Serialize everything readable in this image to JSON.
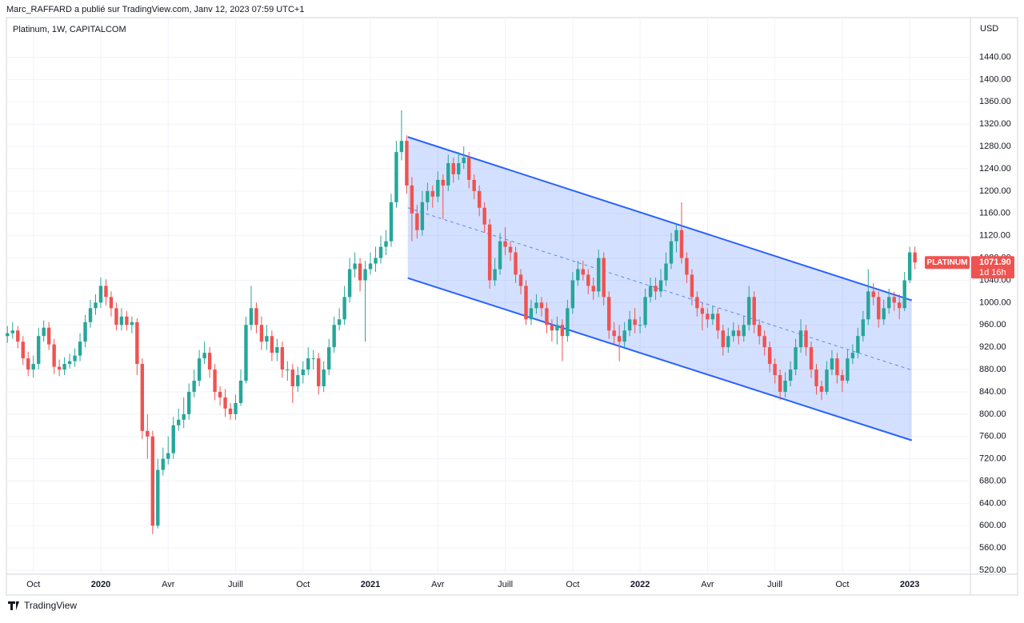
{
  "header": {
    "byline": "Marc_RAFFARD a publié sur TradingView.com, Janv 12, 2023 07:59 UTC+1"
  },
  "chart_data": {
    "type": "candlestick",
    "symbol": "Platinum, 1W, CAPITALCOM",
    "currency": "USD",
    "x": [
      -5,
      -4,
      -3,
      -2,
      -1,
      0,
      1,
      2,
      3,
      4,
      5,
      6,
      7,
      8,
      9,
      10,
      11,
      12,
      13,
      14,
      15,
      16,
      17,
      18,
      19,
      20,
      21,
      22,
      23,
      24,
      25,
      26,
      27,
      28,
      29,
      30,
      31,
      32,
      33,
      34,
      35,
      36,
      37,
      38,
      39,
      40,
      41,
      42,
      43,
      44,
      45,
      46,
      47,
      48,
      49,
      50,
      51,
      52,
      53,
      54,
      55,
      56,
      57,
      58,
      59,
      60,
      61,
      62,
      63,
      64,
      65,
      66,
      67,
      68,
      69,
      70,
      71,
      72,
      73,
      74,
      75,
      76,
      77,
      78,
      79,
      80,
      81,
      82,
      83,
      84,
      85,
      86,
      87,
      88,
      89,
      90,
      91,
      92,
      93,
      94,
      95,
      96,
      97,
      98,
      99,
      100,
      101,
      102,
      103,
      104,
      105,
      106,
      107,
      108,
      109,
      110,
      111,
      112,
      113,
      114,
      115,
      116,
      117,
      118,
      119,
      120,
      121,
      122,
      123,
      124,
      125,
      126,
      127,
      128,
      129,
      130,
      131,
      132,
      133,
      134,
      135,
      136,
      137,
      138,
      139,
      140,
      141,
      142,
      143,
      144,
      145,
      146,
      147,
      148,
      149,
      150,
      151,
      152,
      153,
      154,
      155,
      156,
      157,
      158,
      159,
      160,
      161,
      162,
      163,
      164,
      165,
      166,
      167,
      168,
      169,
      170
    ],
    "open": [
      940,
      945,
      950,
      930,
      900,
      880,
      890,
      940,
      955,
      925,
      885,
      880,
      890,
      895,
      905,
      930,
      965,
      990,
      1000,
      1030,
      1010,
      990,
      960,
      975,
      960,
      965,
      890,
      770,
      760,
      600,
      700,
      720,
      730,
      780,
      790,
      800,
      840,
      860,
      900,
      910,
      880,
      840,
      830,
      810,
      800,
      820,
      860,
      960,
      990,
      960,
      930,
      940,
      910,
      920,
      880,
      880,
      850,
      870,
      880,
      900,
      900,
      850,
      880,
      920,
      960,
      970,
      1010,
      1060,
      1070,
      1040,
      1060,
      1070,
      1080,
      1100,
      1110,
      1180,
      1270,
      1290,
      1210,
      1160,
      1130,
      1180,
      1200,
      1190,
      1220,
      1210,
      1250,
      1230,
      1250,
      1260,
      1220,
      1200,
      1170,
      1140,
      1040,
      1060,
      1110,
      1100,
      1090,
      1050,
      1030,
      970,
      990,
      1000,
      990,
      960,
      950,
      960,
      940,
      990,
      1040,
      1060,
      1050,
      1030,
      1020,
      1080,
      1010,
      950,
      940,
      930,
      950,
      970,
      960,
      960,
      1010,
      1030,
      1020,
      1040,
      1070,
      1110,
      1130,
      1080,
      1050,
      1010,
      990,
      980,
      970,
      980,
      950,
      920,
      940,
      950,
      940,
      960,
      1010,
      960,
      940,
      920,
      890,
      870,
      840,
      860,
      880,
      920,
      950,
      920,
      880,
      850,
      840,
      880,
      900,
      870,
      860,
      900,
      910,
      940,
      970,
      1020,
      1010,
      970,
      990,
      1010,
      1000,
      990,
      1040,
      1090
    ],
    "high": [
      958,
      965,
      958,
      940,
      912,
      905,
      955,
      968,
      965,
      935,
      898,
      902,
      908,
      918,
      945,
      978,
      1005,
      1015,
      1045,
      1042,
      1020,
      1000,
      990,
      985,
      975,
      972,
      900,
      800,
      770,
      720,
      740,
      760,
      795,
      810,
      830,
      855,
      880,
      915,
      930,
      920,
      890,
      850,
      845,
      820,
      835,
      880,
      975,
      1030,
      1000,
      975,
      960,
      950,
      935,
      930,
      895,
      890,
      885,
      895,
      920,
      915,
      910,
      895,
      935,
      975,
      990,
      1030,
      1080,
      1090,
      1080,
      1075,
      1090,
      1100,
      1120,
      1130,
      1195,
      1290,
      1345,
      1300,
      1225,
      1175,
      1200,
      1215,
      1210,
      1235,
      1230,
      1265,
      1260,
      1270,
      1280,
      1270,
      1230,
      1210,
      1180,
      1150,
      1080,
      1125,
      1135,
      1110,
      1100,
      1060,
      1040,
      1005,
      1015,
      1010,
      1000,
      970,
      975,
      970,
      1005,
      1055,
      1075,
      1075,
      1060,
      1045,
      1095,
      1090,
      1020,
      965,
      960,
      965,
      985,
      990,
      975,
      1025,
      1045,
      1045,
      1060,
      1090,
      1125,
      1140,
      1180,
      1090,
      1060,
      1020,
      1000,
      990,
      995,
      990,
      960,
      955,
      965,
      960,
      975,
      1030,
      1020,
      970,
      950,
      930,
      900,
      880,
      875,
      895,
      935,
      970,
      960,
      930,
      890,
      860,
      895,
      915,
      910,
      880,
      915,
      925,
      955,
      985,
      1060,
      1035,
      1020,
      1005,
      1025,
      1020,
      1015,
      1055,
      1100,
      1100
    ],
    "low": [
      928,
      935,
      918,
      888,
      868,
      866,
      880,
      930,
      915,
      872,
      868,
      870,
      882,
      885,
      895,
      920,
      955,
      978,
      990,
      995,
      975,
      950,
      950,
      950,
      945,
      870,
      755,
      720,
      585,
      595,
      690,
      710,
      720,
      770,
      775,
      790,
      830,
      850,
      890,
      865,
      825,
      815,
      795,
      790,
      790,
      815,
      855,
      950,
      945,
      915,
      915,
      895,
      895,
      865,
      860,
      820,
      840,
      855,
      870,
      880,
      835,
      840,
      870,
      910,
      950,
      960,
      1000,
      1045,
      1020,
      930,
      1050,
      1055,
      1070,
      1085,
      1100,
      1170,
      1255,
      1195,
      1110,
      1115,
      1120,
      1165,
      1170,
      1180,
      1150,
      1200,
      1215,
      1220,
      1240,
      1205,
      1185,
      1155,
      1125,
      1025,
      1030,
      1050,
      1085,
      1075,
      1035,
      1015,
      960,
      960,
      980,
      975,
      945,
      930,
      925,
      895,
      930,
      980,
      1030,
      1040,
      1015,
      1005,
      1010,
      995,
      935,
      925,
      895,
      920,
      940,
      945,
      945,
      955,
      1000,
      1005,
      1010,
      1030,
      1060,
      1090,
      1070,
      1035,
      995,
      975,
      950,
      955,
      960,
      935,
      905,
      910,
      930,
      925,
      930,
      950,
      945,
      925,
      905,
      875,
      855,
      825,
      830,
      850,
      870,
      910,
      905,
      865,
      835,
      825,
      835,
      870,
      855,
      840,
      855,
      890,
      900,
      930,
      960,
      995,
      955,
      960,
      980,
      985,
      970,
      985,
      1035,
      1060
    ],
    "close": [
      945,
      950,
      930,
      900,
      880,
      890,
      940,
      955,
      925,
      885,
      880,
      890,
      895,
      905,
      930,
      965,
      990,
      1000,
      1030,
      1010,
      990,
      960,
      975,
      960,
      965,
      890,
      770,
      760,
      600,
      700,
      720,
      730,
      780,
      790,
      800,
      840,
      860,
      900,
      910,
      880,
      840,
      830,
      810,
      800,
      820,
      860,
      960,
      990,
      960,
      930,
      940,
      910,
      920,
      880,
      880,
      850,
      870,
      880,
      900,
      900,
      850,
      880,
      920,
      960,
      970,
      1010,
      1060,
      1070,
      1040,
      1060,
      1070,
      1080,
      1100,
      1110,
      1180,
      1270,
      1290,
      1210,
      1160,
      1130,
      1180,
      1200,
      1190,
      1220,
      1210,
      1250,
      1230,
      1250,
      1260,
      1220,
      1200,
      1170,
      1140,
      1040,
      1060,
      1110,
      1100,
      1090,
      1050,
      1030,
      970,
      990,
      1000,
      990,
      960,
      950,
      960,
      940,
      990,
      1040,
      1060,
      1050,
      1030,
      1020,
      1080,
      1010,
      950,
      940,
      930,
      950,
      970,
      960,
      960,
      1010,
      1030,
      1020,
      1040,
      1070,
      1110,
      1130,
      1080,
      1050,
      1010,
      990,
      980,
      970,
      980,
      950,
      920,
      940,
      950,
      940,
      960,
      1010,
      960,
      940,
      920,
      890,
      870,
      840,
      860,
      880,
      920,
      950,
      920,
      880,
      850,
      840,
      880,
      900,
      870,
      860,
      900,
      910,
      940,
      970,
      1020,
      1010,
      970,
      990,
      1010,
      1000,
      990,
      1040,
      1090,
      1071.9
    ],
    "up_color": "#26a69a",
    "down_color": "#ef5350",
    "xlim": [
      -5.2,
      180.7
    ],
    "xticks": [
      {
        "value": 0,
        "label": "Oct"
      },
      {
        "value": 13,
        "label": "2020"
      },
      {
        "value": 26,
        "label": "Avr"
      },
      {
        "value": 39,
        "label": "Juill"
      },
      {
        "value": 52,
        "label": "Oct"
      },
      {
        "value": 65,
        "label": "2021"
      },
      {
        "value": 78,
        "label": "Avr"
      },
      {
        "value": 91,
        "label": "Juill"
      },
      {
        "value": 104,
        "label": "Oct"
      },
      {
        "value": 117,
        "label": "2022"
      },
      {
        "value": 130,
        "label": "Avr"
      },
      {
        "value": 143,
        "label": "Juill"
      },
      {
        "value": 156,
        "label": "Oct"
      },
      {
        "value": 169,
        "label": "2023"
      }
    ],
    "ylim": [
      513,
      1511
    ],
    "yticks": [
      {
        "value": 520,
        "label": "520.00"
      },
      {
        "value": 560,
        "label": "560.00"
      },
      {
        "value": 600,
        "label": "600.00"
      },
      {
        "value": 640,
        "label": "640.00"
      },
      {
        "value": 680,
        "label": "680.00"
      },
      {
        "value": 720,
        "label": "720.00"
      },
      {
        "value": 760,
        "label": "760.00"
      },
      {
        "value": 800,
        "label": "800.00"
      },
      {
        "value": 840,
        "label": "840.00"
      },
      {
        "value": 880,
        "label": "880.00"
      },
      {
        "value": 920,
        "label": "920.00"
      },
      {
        "value": 960,
        "label": "960.00"
      },
      {
        "value": 1000,
        "label": "1000.00"
      },
      {
        "value": 1040,
        "label": "1040.00"
      },
      {
        "value": 1080,
        "label": "1080.00"
      },
      {
        "value": 1120,
        "label": "1120.00"
      },
      {
        "value": 1160,
        "label": "1160.00"
      },
      {
        "value": 1200,
        "label": "1200.00"
      },
      {
        "value": 1240,
        "label": "1240.00"
      },
      {
        "value": 1280,
        "label": "1280.00"
      },
      {
        "value": 1320,
        "label": "1320.00"
      },
      {
        "value": 1360,
        "label": "1360.00"
      },
      {
        "value": 1400,
        "label": "1400.00"
      },
      {
        "value": 1440,
        "label": "1440.00"
      }
    ],
    "grid": true,
    "channel": {
      "x": [
        72.2,
        169.4
      ],
      "upper": [
        1297,
        1004
      ],
      "middle": [
        1170,
        879
      ],
      "lower": [
        1044,
        753
      ],
      "color": "#2962ff"
    },
    "last_price": {
      "name": "PLATINUM",
      "label": "1071.90",
      "countdown": "1d 16h"
    }
  },
  "footer": {
    "brand": "TradingView"
  }
}
